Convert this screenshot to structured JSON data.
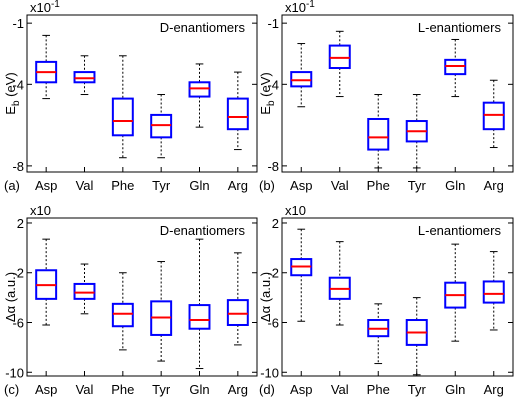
{
  "chart_data": [
    {
      "type": "box",
      "title": "D-enantiomers",
      "panel_label": "(a)",
      "ylabel": "E_b (eV)",
      "ylabel_main": "E",
      "ylabel_sub": "b",
      "ylabel_unit": " (eV)",
      "exponent_label": "x10",
      "exponent_power": "-1",
      "ylim": [
        -8.3,
        -0.6
      ],
      "yticks": [
        -8,
        -4,
        -1
      ],
      "yticklabels": [
        "-8",
        "-4",
        "-1"
      ],
      "categories": [
        "Asp",
        "Val",
        "Phe",
        "Tyr",
        "Gln",
        "Arg"
      ],
      "boxes": [
        {
          "min": -4.7,
          "q1": -3.9,
          "median": -3.4,
          "q3": -2.9,
          "max": -1.6
        },
        {
          "min": -4.5,
          "q1": -3.9,
          "median": -3.7,
          "q3": -3.4,
          "max": -2.6
        },
        {
          "min": -7.6,
          "q1": -6.5,
          "median": -5.8,
          "q3": -4.7,
          "max": -2.6
        },
        {
          "min": -7.6,
          "q1": -6.6,
          "median": -6.0,
          "q3": -5.5,
          "max": -4.5
        },
        {
          "min": -6.1,
          "q1": -4.6,
          "median": -4.2,
          "q3": -3.9,
          "max": -3.0
        },
        {
          "min": -7.2,
          "q1": -6.2,
          "median": -5.6,
          "q3": -4.7,
          "max": -3.4
        }
      ]
    },
    {
      "type": "box",
      "title": "L-enantiomers",
      "panel_label": "(b)",
      "ylabel": "E_b (eV)",
      "ylabel_main": "E",
      "ylabel_sub": "b",
      "ylabel_unit": " (eV)",
      "exponent_label": "x10",
      "exponent_power": "-1",
      "ylim": [
        -8.3,
        -0.6
      ],
      "yticks": [
        -8,
        -4,
        -1
      ],
      "yticklabels": [
        "-8",
        "-4",
        "-1"
      ],
      "categories": [
        "Asp",
        "Val",
        "Phe",
        "Tyr",
        "Gln",
        "Arg"
      ],
      "boxes": [
        {
          "min": -5.1,
          "q1": -4.1,
          "median": -3.8,
          "q3": -3.4,
          "max": -2.0
        },
        {
          "min": -4.6,
          "q1": -3.2,
          "median": -2.7,
          "q3": -2.1,
          "max": -1.4
        },
        {
          "min": -8.1,
          "q1": -7.2,
          "median": -6.6,
          "q3": -5.7,
          "max": -4.5
        },
        {
          "min": -8.1,
          "q1": -6.8,
          "median": -6.3,
          "q3": -5.8,
          "max": -4.5
        },
        {
          "min": -4.6,
          "q1": -3.5,
          "median": -3.1,
          "q3": -2.8,
          "max": -1.8
        },
        {
          "min": -7.1,
          "q1": -6.2,
          "median": -5.5,
          "q3": -4.9,
          "max": -3.8
        }
      ]
    },
    {
      "type": "box",
      "title": "D-enantiomers",
      "panel_label": "(c)",
      "ylabel": "Δα (a.u.)",
      "ylabel_main": "Δα",
      "ylabel_sub": "",
      "ylabel_unit": " (a.u.)",
      "exponent_label": "x10",
      "exponent_power": "",
      "ylim": [
        -10.3,
        2.4
      ],
      "yticks": [
        -10,
        -6,
        -2,
        2
      ],
      "yticklabels": [
        "-10",
        "-6",
        "-2",
        "2"
      ],
      "categories": [
        "Asp",
        "Val",
        "Phe",
        "Tyr",
        "Gln",
        "Arg"
      ],
      "boxes": [
        {
          "min": -6.2,
          "q1": -4.1,
          "median": -3.0,
          "q3": -1.8,
          "max": 0.7
        },
        {
          "min": -5.3,
          "q1": -4.1,
          "median": -3.6,
          "q3": -2.9,
          "max": -1.3
        },
        {
          "min": -8.2,
          "q1": -6.3,
          "median": -5.3,
          "q3": -4.5,
          "max": -2.0
        },
        {
          "min": -9.1,
          "q1": -7.0,
          "median": -5.6,
          "q3": -4.3,
          "max": -1.1
        },
        {
          "min": -9.7,
          "q1": -6.5,
          "median": -5.8,
          "q3": -4.6,
          "max": 0.7
        },
        {
          "min": -7.8,
          "q1": -6.2,
          "median": -5.3,
          "q3": -4.2,
          "max": -0.4
        }
      ]
    },
    {
      "type": "box",
      "title": "L-enantiomers",
      "panel_label": "(d)",
      "ylabel": "Δα (a.u.)",
      "ylabel_main": "Δα",
      "ylabel_sub": "",
      "ylabel_unit": " (a.u.)",
      "exponent_label": "x10",
      "exponent_power": "",
      "ylim": [
        -10.3,
        2.4
      ],
      "yticks": [
        -10,
        -6,
        -2,
        2
      ],
      "yticklabels": [
        "-10",
        "-6",
        "-2",
        "2"
      ],
      "categories": [
        "Asp",
        "Val",
        "Phe",
        "Tyr",
        "Gln",
        "Arg"
      ],
      "boxes": [
        {
          "min": -5.9,
          "q1": -2.2,
          "median": -1.5,
          "q3": -0.9,
          "max": 1.5
        },
        {
          "min": -6.2,
          "q1": -4.1,
          "median": -3.3,
          "q3": -2.4,
          "max": 0.5
        },
        {
          "min": -9.3,
          "q1": -7.1,
          "median": -6.5,
          "q3": -5.8,
          "max": -4.5
        },
        {
          "min": -10.2,
          "q1": -7.8,
          "median": -6.8,
          "q3": -5.8,
          "max": -4.0
        },
        {
          "min": -7.5,
          "q1": -4.8,
          "median": -3.8,
          "q3": -2.8,
          "max": 0.3
        },
        {
          "min": -6.6,
          "q1": -4.4,
          "median": -3.7,
          "q3": -2.7,
          "max": -0.3
        }
      ]
    }
  ]
}
